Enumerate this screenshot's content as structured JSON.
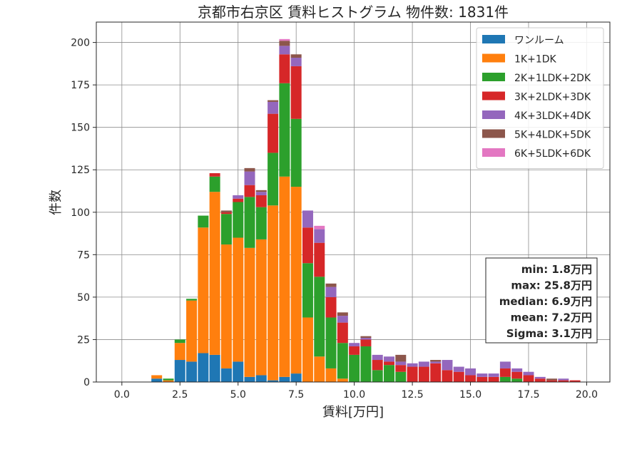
{
  "chart_data": {
    "type": "bar",
    "stacked": true,
    "title": "京都市右京区 賃料ヒストグラム 物件数: 1831件",
    "xlabel": "賃料[万円]",
    "ylabel": "件数",
    "xlim": [
      -1.1,
      21.0
    ],
    "ylim": [
      0,
      212
    ],
    "xticks": [
      0.0,
      2.5,
      5.0,
      7.5,
      10.0,
      12.5,
      15.0,
      17.5,
      20.0
    ],
    "xtick_labels": [
      "0.0",
      "2.5",
      "5.0",
      "7.5",
      "10.0",
      "12.5",
      "15.0",
      "17.5",
      "20.0"
    ],
    "yticks": [
      0,
      25,
      50,
      75,
      100,
      125,
      150,
      175,
      200
    ],
    "ytick_labels": [
      "0",
      "25",
      "50",
      "75",
      "100",
      "125",
      "150",
      "175",
      "200"
    ],
    "grid": true,
    "legend_position": "top-right",
    "bin_width": 0.5,
    "bin_starts": [
      1.5,
      2.0,
      2.5,
      3.0,
      3.5,
      4.0,
      4.5,
      5.0,
      5.5,
      6.0,
      6.5,
      7.0,
      7.5,
      8.0,
      8.5,
      9.0,
      9.5,
      10.0,
      10.5,
      11.0,
      11.5,
      12.0,
      12.5,
      13.0,
      13.5,
      14.0,
      14.5,
      15.0,
      15.5,
      16.0,
      16.5,
      17.0,
      17.5,
      18.0,
      18.5,
      19.0,
      19.5
    ],
    "series": [
      {
        "name": "ワンルーム",
        "color": "#1f77b4",
        "values": [
          2,
          0,
          13,
          12,
          17,
          16,
          8,
          12,
          3,
          4,
          1,
          3,
          5,
          0,
          0,
          0,
          0,
          0,
          0,
          0,
          0,
          0,
          0,
          0,
          0,
          0,
          0,
          0,
          0,
          0,
          0,
          0,
          0,
          0,
          0,
          0,
          0
        ]
      },
      {
        "name": "1K+1DK",
        "color": "#ff7f0e",
        "values": [
          2,
          1,
          10,
          36,
          74,
          96,
          73,
          73,
          76,
          80,
          103,
          118,
          110,
          38,
          15,
          8,
          2,
          0,
          0,
          0,
          0,
          0,
          0,
          0,
          0,
          0,
          0,
          0,
          0,
          0,
          0,
          0,
          0,
          0,
          0,
          0,
          0
        ]
      },
      {
        "name": "2K+1LDK+2DK",
        "color": "#2ca02c",
        "values": [
          0,
          1,
          2,
          1,
          7,
          9,
          18,
          21,
          30,
          19,
          31,
          55,
          40,
          32,
          47,
          30,
          21,
          16,
          21,
          7,
          10,
          6,
          0,
          0,
          0,
          0,
          0,
          0,
          0,
          0,
          3,
          2,
          0,
          0,
          0,
          0,
          0
        ]
      },
      {
        "name": "3K+2LDK+3DK",
        "color": "#d62728",
        "values": [
          0,
          0,
          0,
          0,
          0,
          2,
          1,
          2,
          7,
          7,
          23,
          17,
          31,
          21,
          20,
          12,
          12,
          5,
          4,
          6,
          2,
          4,
          9,
          9,
          11,
          7,
          6,
          4,
          3,
          3,
          5,
          4,
          4,
          2,
          1,
          1,
          1
        ]
      },
      {
        "name": "4K+3LDK+4DK",
        "color": "#9467bd",
        "values": [
          0,
          0,
          0,
          0,
          0,
          0,
          0,
          2,
          8,
          2,
          7,
          5,
          5,
          10,
          8,
          6,
          4,
          2,
          1,
          3,
          3,
          2,
          2,
          3,
          1,
          6,
          3,
          4,
          2,
          2,
          4,
          2,
          2,
          1,
          0,
          1,
          0
        ]
      },
      {
        "name": "5K+4LDK+5DK",
        "color": "#8c564b",
        "values": [
          0,
          0,
          0,
          0,
          0,
          0,
          1,
          0,
          2,
          1,
          1,
          3,
          2,
          0,
          0,
          2,
          2,
          0,
          1,
          0,
          0,
          4,
          0,
          0,
          1,
          0,
          0,
          0,
          0,
          0,
          0,
          0,
          0,
          0,
          1,
          0,
          0
        ]
      },
      {
        "name": "6K+5LDK+6DK",
        "color": "#e377c2",
        "values": [
          0,
          0,
          0,
          0,
          0,
          0,
          0,
          0,
          0,
          0,
          0,
          1,
          0,
          0,
          2,
          0,
          0,
          0,
          0,
          0,
          0,
          0,
          0,
          0,
          0,
          0,
          0,
          0,
          0,
          0,
          0,
          0,
          0,
          0,
          0,
          0,
          0
        ]
      }
    ]
  },
  "stats": {
    "lines": [
      "min: 1.8万円",
      "max: 25.8万円",
      "median: 6.9万円",
      "mean: 7.2万円",
      "Sigma: 3.1万円"
    ]
  }
}
